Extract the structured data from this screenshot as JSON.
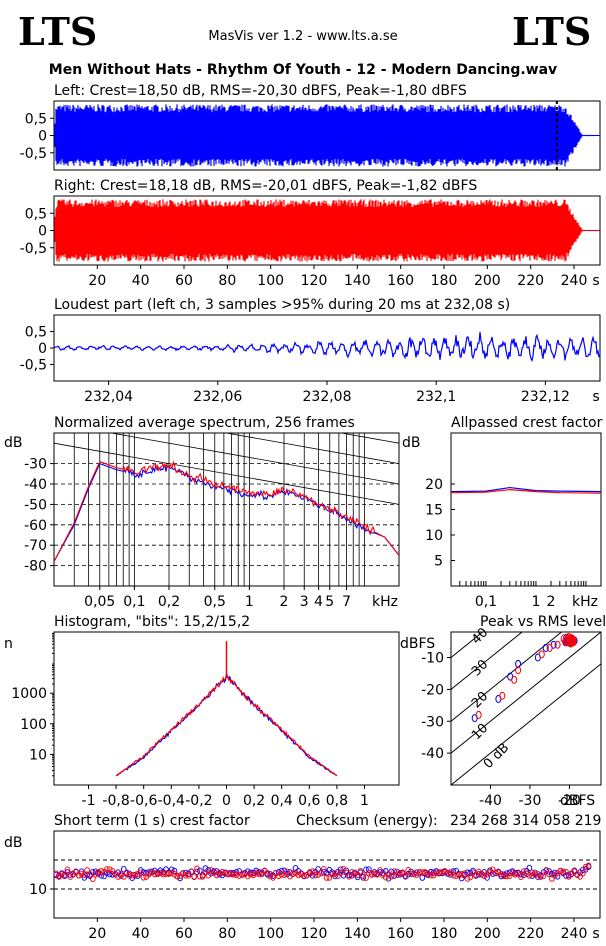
{
  "header": {
    "logo_left": "LTS",
    "logo_right": "LTS",
    "app_title": "MasVis ver 1.2 - www.lts.a.se",
    "track_title": "Men Without Hats - Rhythm Of Youth  - 12 - Modern Dancing.wav"
  },
  "colors": {
    "left": "#0000ff",
    "right": "#ff0000",
    "grid": "#000000",
    "marker": "#000000"
  },
  "chart_data": [
    {
      "id": "left",
      "type": "area",
      "title": "Left: Crest=18,50 dB, RMS=-20,30 dBFS, Peak=-1,80 dBFS",
      "yticks": [
        "0,5",
        "0",
        "-0,5"
      ],
      "ylim": [
        -1,
        1
      ],
      "xlim": [
        0,
        252
      ],
      "marker_x": 232.08,
      "envelope": {
        "amplitude": 0.95,
        "fade_start": 236,
        "fade_end": 244
      }
    },
    {
      "id": "right",
      "type": "area",
      "title": "Right: Crest=18,18 dB, RMS=-20,01 dBFS, Peak=-1,82 dBFS",
      "yticks": [
        "0,5",
        "0",
        "-0,5"
      ],
      "ylim": [
        -1,
        1
      ],
      "xlim": [
        0,
        252
      ],
      "xticks": [
        "20",
        "40",
        "60",
        "80",
        "100",
        "120",
        "140",
        "160",
        "180",
        "200",
        "220",
        "240"
      ],
      "xunit": "s"
    },
    {
      "id": "loudest",
      "type": "line",
      "title": "Loudest part (left  ch, 3 samples >95% during 20 ms at 232,08 s)",
      "yticks": [
        "0,5",
        "0",
        "-0,5"
      ],
      "ylim": [
        -1,
        1
      ],
      "xlim": [
        232.03,
        232.13
      ],
      "xticks": [
        "232,04",
        "232,06",
        "232,08",
        "232,1",
        "232,12"
      ],
      "xunit": "s"
    },
    {
      "id": "spectrum",
      "type": "line",
      "title": "Normalized average spectrum, 256 frames",
      "ylabel": "dB",
      "yticks": [
        "-30",
        "-40",
        "-50",
        "-60",
        "-70",
        "-80"
      ],
      "ylim": [
        -90,
        -15
      ],
      "xlim": [
        0.02,
        20
      ],
      "xscale": "log",
      "xticks": [
        "0,05",
        "0,1",
        "0,2",
        "0,5",
        "1",
        "2",
        "3",
        "4",
        "5",
        "7"
      ],
      "xunit": "kHz",
      "grid": true,
      "series": [
        {
          "color": "#0000ff",
          "values": [
            [
              0.02,
              -78
            ],
            [
              0.03,
              -60
            ],
            [
              0.04,
              -42
            ],
            [
              0.05,
              -30
            ],
            [
              0.07,
              -33
            ],
            [
              0.1,
              -35
            ],
            [
              0.15,
              -33
            ],
            [
              0.2,
              -32
            ],
            [
              0.3,
              -37
            ],
            [
              0.5,
              -41
            ],
            [
              0.7,
              -43
            ],
            [
              1,
              -45
            ],
            [
              1.5,
              -46
            ],
            [
              2,
              -44
            ],
            [
              3,
              -47
            ],
            [
              5,
              -53
            ],
            [
              7,
              -57
            ],
            [
              10,
              -62
            ],
            [
              15,
              -66
            ],
            [
              20,
              -75
            ]
          ]
        },
        {
          "color": "#ff0000",
          "values": [
            [
              0.02,
              -78
            ],
            [
              0.03,
              -59
            ],
            [
              0.04,
              -41
            ],
            [
              0.05,
              -29
            ],
            [
              0.07,
              -32
            ],
            [
              0.1,
              -34
            ],
            [
              0.15,
              -32
            ],
            [
              0.2,
              -31
            ],
            [
              0.3,
              -36
            ],
            [
              0.5,
              -40
            ],
            [
              0.7,
              -42
            ],
            [
              1,
              -44
            ],
            [
              1.5,
              -45
            ],
            [
              2,
              -43
            ],
            [
              3,
              -46
            ],
            [
              5,
              -52
            ],
            [
              7,
              -56
            ],
            [
              10,
              -61
            ],
            [
              15,
              -66
            ],
            [
              20,
              -75
            ]
          ]
        }
      ]
    },
    {
      "id": "crest",
      "type": "line",
      "title": "Allpassed crest factor",
      "ylabel": "dB",
      "yticks": [
        "20",
        "15",
        "10",
        "5"
      ],
      "ylim": [
        0,
        30
      ],
      "xlim": [
        0.02,
        20
      ],
      "xscale": "log",
      "xticks": [
        "0,1",
        "1",
        "2"
      ],
      "xunit": "kHz",
      "series": [
        {
          "color": "#0000ff",
          "values": [
            [
              0.02,
              18.5
            ],
            [
              0.1,
              18.6
            ],
            [
              0.3,
              19.3
            ],
            [
              1,
              18.7
            ],
            [
              3,
              18.6
            ],
            [
              20,
              18.5
            ]
          ]
        },
        {
          "color": "#ff0000",
          "values": [
            [
              0.02,
              18.3
            ],
            [
              0.1,
              18.4
            ],
            [
              0.3,
              18.9
            ],
            [
              1,
              18.5
            ],
            [
              3,
              18.3
            ],
            [
              20,
              18.2
            ]
          ]
        }
      ]
    },
    {
      "id": "histogram",
      "type": "line",
      "title": "Histogram, \"bits\": 15,2/15,2",
      "ylabel": "n",
      "yticks": [
        "1000",
        "100",
        "10"
      ],
      "yscale": "log",
      "ylim": [
        1,
        100000
      ],
      "xlim": [
        -1.25,
        1.25
      ],
      "xticks": [
        "-1",
        "-0,8",
        "-0,6",
        "-0,4",
        "-0,2",
        "0",
        "0,2",
        "0,4",
        "0,6",
        "0,8",
        "1"
      ],
      "series": [
        {
          "color": "#0000ff",
          "values": [
            [
              -0.8,
              2
            ],
            [
              -0.6,
              8
            ],
            [
              -0.4,
              60
            ],
            [
              -0.2,
              400
            ],
            [
              0,
              3500
            ],
            [
              0.2,
              400
            ],
            [
              0.4,
              60
            ],
            [
              0.6,
              8
            ],
            [
              0.8,
              2
            ]
          ]
        },
        {
          "color": "#ff0000",
          "values": [
            [
              -0.8,
              2
            ],
            [
              -0.6,
              9
            ],
            [
              -0.4,
              65
            ],
            [
              -0.2,
              420
            ],
            [
              0,
              3600
            ],
            [
              0.2,
              420
            ],
            [
              0.4,
              65
            ],
            [
              0.6,
              9
            ],
            [
              0.8,
              2
            ]
          ]
        }
      ],
      "spike": {
        "x": 0,
        "y": 50000
      }
    },
    {
      "id": "peakrms",
      "type": "scatter",
      "title": "Peak vs RMS level",
      "ylabel": "dBFS",
      "xlabel": "dBFS",
      "yticks": [
        "-10",
        "-20",
        "-30",
        "-40"
      ],
      "xticks": [
        "-40",
        "-30",
        "-20"
      ],
      "xlim": [
        -50,
        -12
      ],
      "ylim": [
        -50,
        -2
      ],
      "diagonal_labels": [
        "40",
        "30",
        "20",
        "10",
        "0 dB"
      ],
      "series": [
        {
          "color": "#0000ff",
          "values": [
            [
              -44,
              -29
            ],
            [
              -38,
              -23
            ],
            [
              -35,
              -16
            ],
            [
              -33,
              -12
            ],
            [
              -28,
              -10
            ],
            [
              -26,
              -7
            ],
            [
              -24,
              -6
            ],
            [
              -21,
              -5
            ],
            [
              -20,
              -5
            ]
          ]
        },
        {
          "color": "#ff0000",
          "values": [
            [
              -43,
              -28
            ],
            [
              -37,
              -22
            ],
            [
              -34,
              -17
            ],
            [
              -33,
              -14
            ],
            [
              -27,
              -9
            ],
            [
              -25,
              -7
            ],
            [
              -23,
              -6
            ],
            [
              -21,
              -5
            ],
            [
              -20,
              -4
            ]
          ]
        }
      ]
    },
    {
      "id": "shortcrest",
      "type": "scatter",
      "title": "Short term (1 s) crest factor",
      "ylabel": "dB",
      "checksum_label": "Checksum (energy):",
      "checksum_value": "234 268 314 058 219",
      "yticks": [
        "10"
      ],
      "ylim": [
        0,
        30
      ],
      "xlim": [
        0,
        252
      ],
      "xticks": [
        "20",
        "40",
        "60",
        "80",
        "100",
        "120",
        "140",
        "160",
        "180",
        "200",
        "220",
        "240"
      ],
      "xunit": "s",
      "series": [
        {
          "color": "#0000ff",
          "mean": 15.5,
          "spread": 1.6
        },
        {
          "color": "#ff0000",
          "mean": 15.2,
          "spread": 1.6
        }
      ]
    }
  ]
}
